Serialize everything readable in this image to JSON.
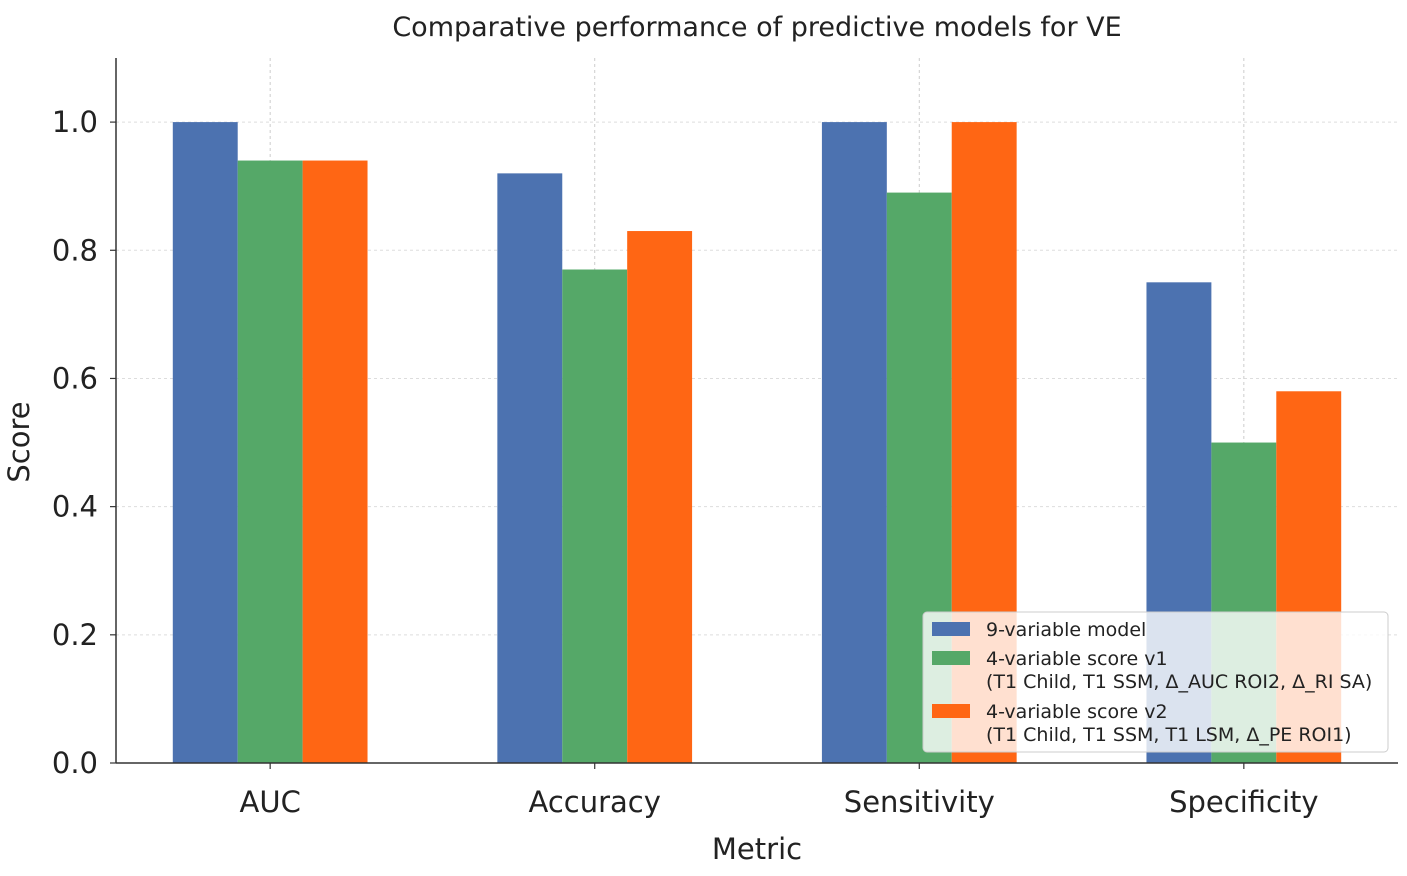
{
  "chart_data": {
    "type": "bar",
    "title": "Comparative performance of predictive models for VE",
    "xlabel": "Metric",
    "ylabel": "Score",
    "categories": [
      "AUC",
      "Accuracy",
      "Sensitivity",
      "Specificity"
    ],
    "ylim": [
      0,
      1.1
    ],
    "yticks": [
      "0.0",
      "0.2",
      "0.4",
      "0.6",
      "0.8",
      "1.0"
    ],
    "grid": true,
    "legend_position": "bottom-right",
    "series": [
      {
        "name": "9-variable model",
        "color": "#4C72B0",
        "values": [
          1.0,
          0.92,
          1.0,
          0.75
        ]
      },
      {
        "name": "4-variable score v1\n(T1 Child, T1 SSM, Δ_AUC ROI2, Δ_RI SA)",
        "color": "#55A868",
        "values": [
          0.94,
          0.77,
          0.89,
          0.5
        ]
      },
      {
        "name": "4-variable score v2\n(T1 Child, T1 SSM, T1 LSM, Δ_PE ROI1)",
        "color": "#FF6614",
        "values": [
          0.94,
          0.83,
          1.0,
          0.58
        ]
      }
    ]
  }
}
